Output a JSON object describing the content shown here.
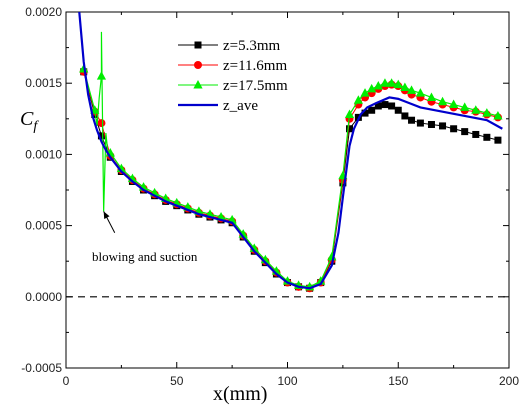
{
  "chart_data": {
    "type": "line",
    "xlabel": "x(mm)",
    "ylabel": "Cf",
    "xlim": [
      0,
      200
    ],
    "ylim": [
      -0.0005,
      0.002
    ],
    "xticks": [
      "0",
      "50",
      "100",
      "150",
      "200"
    ],
    "yticks": [
      "-0.0005",
      "0.0000",
      "0.0005",
      "0.0010",
      "0.0015",
      "0.0020"
    ],
    "zero_line": {
      "y": 0,
      "style": "dashed"
    },
    "annotation": {
      "text": "blowing and suction",
      "arrow_to": [
        17,
        0.0006
      ],
      "arrow_from": [
        22,
        0.00045
      ]
    },
    "legend_position": "top-right",
    "series": [
      {
        "name": "z=5.3mm",
        "color": "#000000",
        "marker": "square",
        "x": [
          8,
          13,
          16,
          20,
          25,
          30,
          35,
          40,
          45,
          50,
          55,
          60,
          65,
          70,
          75,
          80,
          85,
          90,
          95,
          100,
          105,
          110,
          115,
          120,
          125,
          128,
          132,
          135,
          138,
          141,
          144,
          147,
          150,
          153,
          156,
          160,
          165,
          170,
          175,
          180,
          185,
          190,
          195
        ],
        "values": [
          0.00158,
          0.00128,
          0.00113,
          0.00098,
          0.00088,
          0.00081,
          0.00075,
          0.00071,
          0.00067,
          0.00064,
          0.00061,
          0.00058,
          0.00056,
          0.00054,
          0.00052,
          0.00042,
          0.00032,
          0.00024,
          0.00016,
          0.0001,
          7e-05,
          6e-05,
          0.0001,
          0.00025,
          0.0008,
          0.00118,
          0.00126,
          0.00129,
          0.00131,
          0.00134,
          0.00135,
          0.00134,
          0.00131,
          0.00127,
          0.00124,
          0.00122,
          0.00121,
          0.0012,
          0.00118,
          0.00116,
          0.00114,
          0.00112,
          0.0011
        ]
      },
      {
        "name": "z=11.6mm",
        "color": "#ff0000",
        "marker": "circle",
        "x": [
          8,
          13,
          16,
          20,
          25,
          30,
          35,
          40,
          45,
          50,
          55,
          60,
          65,
          70,
          75,
          80,
          85,
          90,
          95,
          100,
          105,
          110,
          115,
          120,
          125,
          128,
          132,
          135,
          138,
          141,
          144,
          147,
          150,
          153,
          156,
          160,
          165,
          170,
          175,
          180,
          185,
          190,
          195
        ],
        "values": [
          0.00158,
          0.0013,
          0.00122,
          0.00099,
          0.00089,
          0.00082,
          0.00076,
          0.00072,
          0.00068,
          0.00065,
          0.00062,
          0.00059,
          0.00057,
          0.00055,
          0.00053,
          0.00043,
          0.00033,
          0.00025,
          0.00017,
          0.0001,
          7e-05,
          6e-05,
          0.0001,
          0.00026,
          0.00082,
          0.00125,
          0.00135,
          0.0014,
          0.00143,
          0.00146,
          0.00148,
          0.00149,
          0.00148,
          0.00145,
          0.00142,
          0.0014,
          0.00137,
          0.00135,
          0.00133,
          0.00131,
          0.0013,
          0.00128,
          0.00126
        ]
      },
      {
        "name": "z=17.5mm",
        "color": "#00ee00",
        "marker": "triangle",
        "x": [
          8,
          13,
          16,
          20,
          25,
          30,
          35,
          40,
          45,
          50,
          55,
          60,
          65,
          70,
          75,
          80,
          85,
          90,
          95,
          100,
          105,
          110,
          115,
          120,
          125,
          128,
          132,
          135,
          138,
          141,
          144,
          147,
          150,
          153,
          156,
          160,
          165,
          170,
          175,
          180,
          185,
          190,
          195
        ],
        "values": [
          0.0016,
          0.00131,
          0.00155,
          0.00101,
          0.0009,
          0.00083,
          0.00077,
          0.00073,
          0.00069,
          0.00066,
          0.00063,
          0.0006,
          0.00058,
          0.00056,
          0.00054,
          0.00044,
          0.00034,
          0.00026,
          0.00018,
          0.00011,
          8e-05,
          7e-05,
          0.00011,
          0.00028,
          0.00085,
          0.00128,
          0.00138,
          0.00143,
          0.00146,
          0.00148,
          0.0015,
          0.0015,
          0.00149,
          0.00147,
          0.00145,
          0.00143,
          0.0014,
          0.00137,
          0.00135,
          0.00133,
          0.00131,
          0.00129,
          0.00127
        ]
      },
      {
        "name": "z_ave",
        "color": "#0000cc",
        "marker": "none",
        "x": [
          6,
          8,
          10,
          12,
          14,
          16,
          18,
          20,
          25,
          30,
          35,
          40,
          45,
          50,
          55,
          60,
          65,
          70,
          75,
          80,
          85,
          90,
          95,
          100,
          105,
          110,
          115,
          120,
          123,
          125,
          128,
          130,
          133,
          136,
          140,
          143,
          146,
          150,
          155,
          160,
          170,
          180,
          190,
          197
        ],
        "values": [
          0.002,
          0.00165,
          0.00142,
          0.00127,
          0.00117,
          0.00109,
          0.00103,
          0.00098,
          0.00088,
          0.00081,
          0.00075,
          0.00071,
          0.00067,
          0.00064,
          0.00061,
          0.00058,
          0.00056,
          0.00054,
          0.00052,
          0.00042,
          0.00032,
          0.00024,
          0.00016,
          0.0001,
          7e-05,
          6e-05,
          9e-05,
          0.00022,
          0.00045,
          0.0007,
          0.00106,
          0.00118,
          0.00128,
          0.00133,
          0.00136,
          0.00138,
          0.0014,
          0.00139,
          0.00136,
          0.00133,
          0.0013,
          0.00127,
          0.00124,
          0.00118
        ]
      }
    ],
    "blowing_suction_oscillation": {
      "series": "z=17.5mm",
      "x": [
        14,
        15,
        16,
        17,
        18,
        19
      ],
      "values": [
        0.0012,
        0.0014,
        0.00186,
        0.0006,
        0.00115,
        0.001
      ]
    }
  },
  "colors": {
    "axis": "#000000",
    "zero_line": "#000000"
  }
}
